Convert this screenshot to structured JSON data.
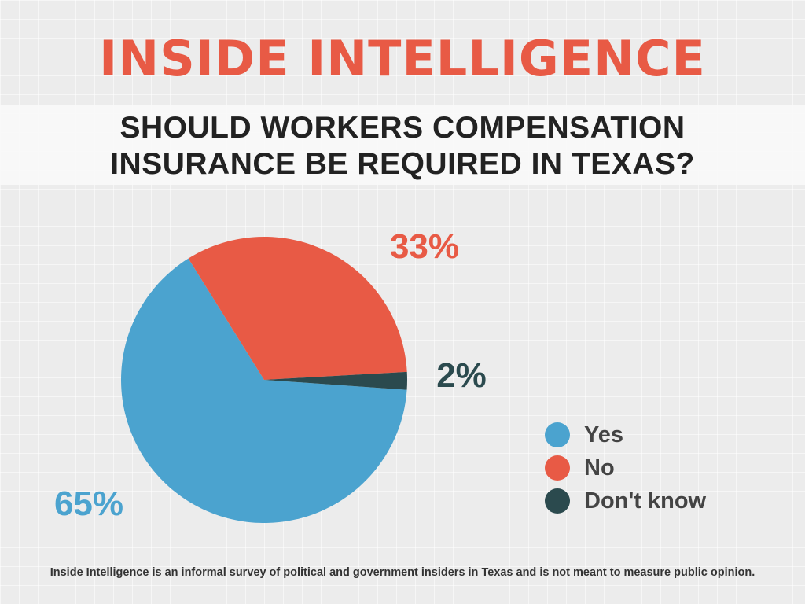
{
  "header": {
    "brand": "INSIDE INTELLIGENCE",
    "question_lines": [
      "SHOULD WORKERS COMPENSATION",
      "INSURANCE BE REQUIRED IN TEXAS?"
    ]
  },
  "chart_data": {
    "type": "pie",
    "title": "SHOULD WORKERS COMPENSATION INSURANCE BE REQUIRED IN TEXAS?",
    "slices": [
      {
        "label": "Yes",
        "value": 65,
        "display": "65%",
        "color": "#4ba3cf"
      },
      {
        "label": "No",
        "value": 33,
        "display": "33%",
        "color": "#e85a45"
      },
      {
        "label": "Don't know",
        "value": 2,
        "display": "2%",
        "color": "#2b4a4e"
      }
    ],
    "legend_position": "right"
  },
  "footer": {
    "note": "Inside Intelligence is an informal survey of political and government insiders in Texas and is not meant to measure public opinion."
  },
  "colors": {
    "brand": "#e85a45",
    "background": "#ececec"
  }
}
